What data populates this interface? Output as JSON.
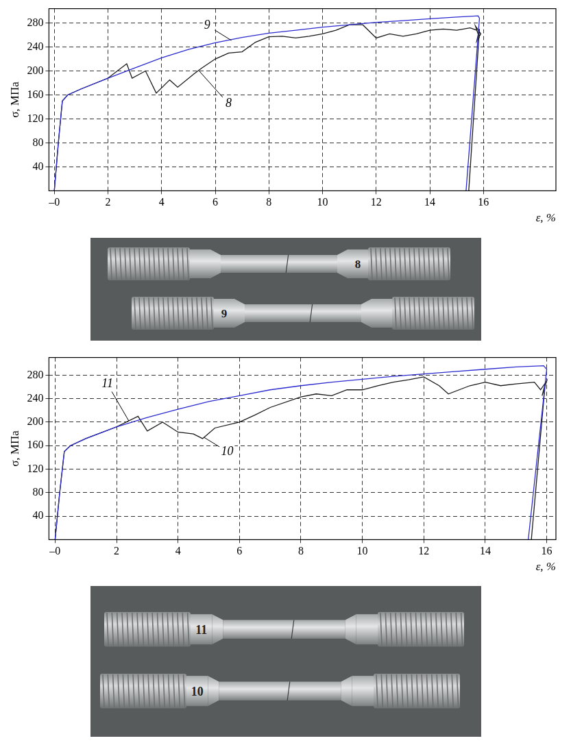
{
  "chart_data": [
    {
      "type": "line",
      "y_label": "σ, МПа",
      "x_label": "ε, %",
      "xlim": [
        -0.2,
        18.7
      ],
      "ylim": [
        0,
        304
      ],
      "xticks": [
        {
          "value": 0,
          "label": "–0"
        },
        2,
        4,
        6,
        8,
        10,
        12,
        14,
        16
      ],
      "yticks": [
        40,
        80,
        120,
        160,
        200,
        240,
        280
      ],
      "grid": true,
      "series": [
        {
          "color": "#2b2bd0",
          "x": [
            0,
            0.15,
            0.3,
            0.5,
            1,
            2,
            3,
            4,
            5,
            6,
            7,
            8,
            9,
            10,
            11,
            12,
            13,
            14,
            15,
            15.8,
            15.85,
            15.35
          ],
          "values": [
            0,
            80,
            150,
            160,
            170,
            188,
            205,
            222,
            236,
            247,
            256,
            263,
            268,
            273,
            277,
            281,
            284,
            287,
            290,
            292,
            288,
            0
          ]
        },
        {
          "color": "#1a1a1a",
          "x": [
            0,
            0.15,
            0.3,
            0.5,
            1,
            2,
            2.7,
            2.9,
            3.4,
            3.8,
            4.3,
            4.6,
            5.2,
            5.5,
            6,
            6.5,
            7,
            7.5,
            8,
            8.5,
            9,
            9.5,
            10,
            10.5,
            11,
            11.5,
            12,
            12.5,
            13,
            13.5,
            14,
            14.5,
            15,
            15.5,
            15.75,
            15.85,
            15.7,
            15.9,
            15.75,
            15.85,
            15.45
          ],
          "values": [
            0,
            80,
            150,
            160,
            170,
            188,
            212,
            188,
            200,
            163,
            185,
            173,
            195,
            205,
            220,
            230,
            232,
            248,
            257,
            258,
            255,
            258,
            262,
            268,
            277,
            277,
            255,
            262,
            258,
            262,
            268,
            270,
            268,
            272,
            268,
            255,
            275,
            262,
            250,
            270,
            0
          ]
        }
      ],
      "annotations": [
        {
          "text": "9",
          "x": 5.7,
          "y": 276,
          "point": [
            6.6,
            251
          ]
        },
        {
          "text": "8",
          "x": 6.5,
          "y": 145,
          "point": [
            5.4,
            200
          ]
        }
      ]
    },
    {
      "type": "line",
      "y_label": "σ, МПа",
      "x_label": "ε, %",
      "xlim": [
        -0.2,
        16.3
      ],
      "ylim": [
        0,
        310
      ],
      "xticks": [
        {
          "value": 0,
          "label": "–0"
        },
        2,
        4,
        6,
        8,
        10,
        12,
        14,
        16
      ],
      "yticks": [
        40,
        80,
        120,
        160,
        200,
        240,
        280
      ],
      "grid": true,
      "series": [
        {
          "color": "#2b2bd0",
          "x": [
            0,
            0.15,
            0.3,
            0.5,
            1,
            2,
            3,
            4,
            5,
            6,
            7,
            8,
            9,
            10,
            11,
            12,
            13,
            14,
            15,
            15.9,
            16,
            15.4
          ],
          "values": [
            0,
            80,
            150,
            160,
            172,
            192,
            208,
            222,
            235,
            245,
            255,
            262,
            268,
            273,
            278,
            282,
            286,
            290,
            294,
            296,
            290,
            0
          ]
        },
        {
          "color": "#1a1a1a",
          "x": [
            0,
            0.15,
            0.3,
            0.5,
            1,
            2,
            2.7,
            3,
            3.5,
            4,
            4.5,
            4.8,
            5.2,
            6,
            6.5,
            7,
            8,
            8.5,
            9,
            9.5,
            10,
            10.5,
            11,
            11.5,
            12,
            12.5,
            12.8,
            13.5,
            14,
            14.5,
            15,
            15.6,
            15.8,
            16,
            15.85,
            15.95,
            15.5
          ],
          "values": [
            0,
            80,
            150,
            160,
            172,
            192,
            210,
            185,
            200,
            183,
            180,
            172,
            190,
            200,
            212,
            225,
            243,
            248,
            245,
            255,
            255,
            262,
            268,
            272,
            277,
            262,
            248,
            262,
            268,
            262,
            265,
            268,
            255,
            270,
            245,
            265,
            0
          ]
        }
      ],
      "annotations": [
        {
          "text": "11",
          "x": 1.7,
          "y": 265,
          "point": [
            2.4,
            202
          ]
        },
        {
          "text": "10",
          "x": 5.6,
          "y": 150,
          "point": [
            4.85,
            174
          ]
        }
      ]
    }
  ],
  "photos": [
    {
      "specimens": [
        "8",
        "9"
      ]
    },
    {
      "specimens": [
        "11",
        "10"
      ]
    }
  ]
}
